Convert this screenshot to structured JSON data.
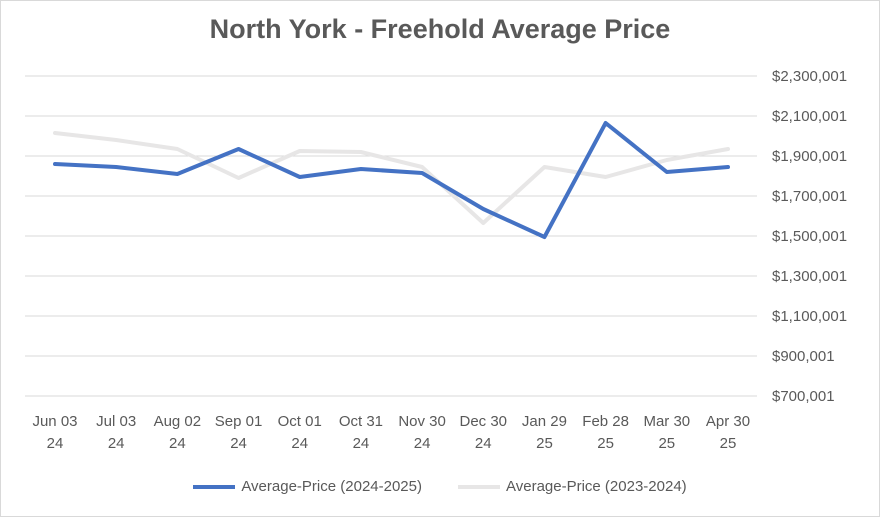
{
  "chart_data": {
    "type": "line",
    "title": "North York - Freehold Average Price",
    "xlabel": "",
    "ylabel": "",
    "categories": [
      [
        "Jun 03",
        "24"
      ],
      [
        "Jul 03",
        "24"
      ],
      [
        "Aug 02",
        "24"
      ],
      [
        "Sep 01",
        "24"
      ],
      [
        "Oct 01",
        "24"
      ],
      [
        "Oct 31",
        "24"
      ],
      [
        "Nov 30",
        "24"
      ],
      [
        "Dec 30",
        "24"
      ],
      [
        "Jan 29",
        "25"
      ],
      [
        "Feb 28",
        "25"
      ],
      [
        "Mar 30",
        "25"
      ],
      [
        "Apr 30",
        "25"
      ]
    ],
    "y_ticks": [
      "$2,300,001",
      "$2,100,001",
      "$1,900,001",
      "$1,700,001",
      "$1,500,001",
      "$1,300,001",
      "$1,100,001",
      "$900,001",
      "$700,001"
    ],
    "ylim": [
      700001,
      2300001
    ],
    "grid": true,
    "legend_position": "bottom",
    "series": [
      {
        "name": "Average-Price (2024-2025)",
        "color": "#4472c4",
        "values": [
          1860000,
          1845000,
          1810000,
          1935000,
          1795000,
          1835000,
          1815000,
          1635000,
          1495000,
          2065000,
          1820000,
          1845000
        ]
      },
      {
        "name": "Average-Price (2023-2024)",
        "color": "#e7e6e6",
        "values": [
          2015000,
          1980000,
          1935000,
          1790000,
          1925000,
          1920000,
          1845000,
          1565000,
          1845000,
          1795000,
          1880000,
          1935000
        ]
      }
    ]
  }
}
